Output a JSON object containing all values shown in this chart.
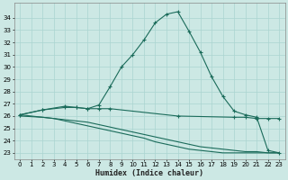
{
  "xlabel": "Humidex (Indice chaleur)",
  "background_color": "#cce8e4",
  "grid_color": "#aad4d0",
  "line_color": "#1a6b5a",
  "x_ticks": [
    0,
    1,
    2,
    3,
    4,
    5,
    6,
    7,
    8,
    9,
    10,
    11,
    12,
    13,
    14,
    15,
    16,
    17,
    18,
    19,
    20,
    21,
    22,
    23
  ],
  "y_ticks": [
    23,
    24,
    25,
    26,
    27,
    28,
    29,
    30,
    31,
    32,
    33,
    34
  ],
  "ylim": [
    22.5,
    35.2
  ],
  "xlim": [
    -0.5,
    23.5
  ],
  "series": [
    {
      "x": [
        0,
        2,
        4,
        5,
        6,
        7,
        8,
        9,
        10,
        11,
        12,
        13,
        14,
        15,
        16,
        17,
        18,
        19,
        20,
        21,
        22,
        23
      ],
      "y": [
        26.1,
        26.5,
        26.8,
        26.7,
        26.6,
        26.9,
        28.4,
        30.0,
        31.0,
        32.2,
        33.6,
        34.3,
        34.5,
        32.9,
        31.2,
        29.2,
        27.6,
        26.4,
        26.1,
        25.9,
        23.2,
        23.0
      ],
      "has_marker": true
    },
    {
      "x": [
        0,
        2,
        4,
        5,
        6,
        7,
        8,
        14,
        19,
        20,
        21,
        22,
        23
      ],
      "y": [
        26.1,
        26.5,
        26.7,
        26.7,
        26.6,
        26.6,
        26.6,
        26.0,
        25.9,
        25.9,
        25.8,
        25.8,
        25.8
      ],
      "has_marker": true
    },
    {
      "x": [
        0,
        1,
        2,
        3,
        4,
        5,
        6,
        7,
        8,
        9,
        10,
        11,
        12,
        13,
        14,
        15,
        16,
        17,
        18,
        19,
        20,
        21,
        22,
        23
      ],
      "y": [
        26.1,
        26.0,
        25.9,
        25.8,
        25.6,
        25.4,
        25.2,
        25.0,
        24.8,
        24.6,
        24.4,
        24.2,
        23.9,
        23.7,
        23.5,
        23.3,
        23.2,
        23.1,
        23.0,
        23.0,
        23.0,
        23.0,
        23.0,
        23.0
      ],
      "has_marker": false
    },
    {
      "x": [
        0,
        1,
        2,
        3,
        4,
        5,
        6,
        7,
        8,
        9,
        10,
        11,
        12,
        13,
        14,
        15,
        16,
        17,
        18,
        19,
        20,
        21,
        22,
        23
      ],
      "y": [
        26.0,
        25.95,
        25.9,
        25.8,
        25.7,
        25.6,
        25.5,
        25.3,
        25.1,
        24.9,
        24.7,
        24.5,
        24.3,
        24.1,
        23.9,
        23.7,
        23.5,
        23.4,
        23.3,
        23.2,
        23.1,
        23.1,
        23.0,
        23.0
      ],
      "has_marker": false
    }
  ]
}
